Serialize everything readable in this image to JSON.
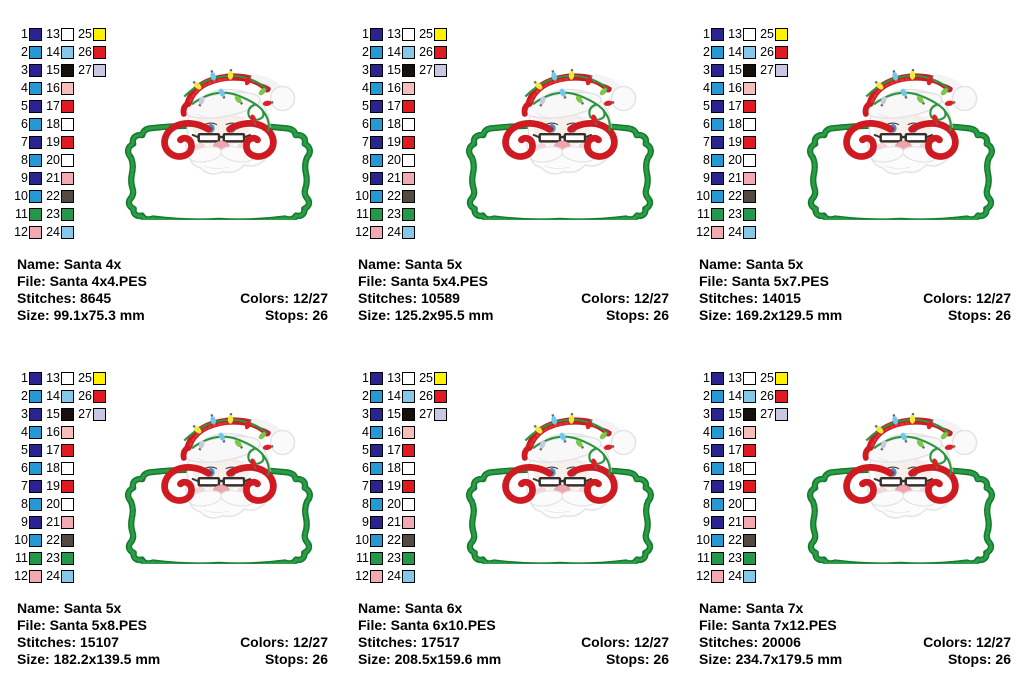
{
  "labels": {
    "name": "Name:",
    "file": "File:",
    "stitches": "Stitches:",
    "size": "Size:",
    "colors": "Colors:",
    "stops": "Stops:"
  },
  "palette": {
    "swatches": [
      {
        "n": "1",
        "hex": "#2B2490"
      },
      {
        "n": "2",
        "hex": "#2499D6"
      },
      {
        "n": "3",
        "hex": "#2B2490"
      },
      {
        "n": "4",
        "hex": "#2499D6"
      },
      {
        "n": "5",
        "hex": "#2B2490"
      },
      {
        "n": "6",
        "hex": "#2499D6"
      },
      {
        "n": "7",
        "hex": "#2B2490"
      },
      {
        "n": "8",
        "hex": "#2499D6"
      },
      {
        "n": "9",
        "hex": "#2B2490"
      },
      {
        "n": "10",
        "hex": "#2499D6"
      },
      {
        "n": "11",
        "hex": "#23984B"
      },
      {
        "n": "12",
        "hex": "#F2A9B1"
      },
      {
        "n": "13",
        "hex": "#FFFFFF"
      },
      {
        "n": "14",
        "hex": "#85C8EA"
      },
      {
        "n": "15",
        "hex": "#16100C"
      },
      {
        "n": "16",
        "hex": "#F6BEBA"
      },
      {
        "n": "17",
        "hex": "#E01A20"
      },
      {
        "n": "18",
        "hex": "#FFFFFF"
      },
      {
        "n": "19",
        "hex": "#E01A20"
      },
      {
        "n": "20",
        "hex": "#FFFFFF"
      },
      {
        "n": "21",
        "hex": "#F2A9B1"
      },
      {
        "n": "22",
        "hex": "#524A40"
      },
      {
        "n": "23",
        "hex": "#23984B"
      },
      {
        "n": "24",
        "hex": "#85C8EA"
      },
      {
        "n": "25",
        "hex": "#FFF200"
      },
      {
        "n": "26",
        "hex": "#E01A20"
      },
      {
        "n": "27",
        "hex": "#C9C8E2"
      }
    ]
  },
  "designs": [
    {
      "name": "Santa 4x",
      "file": "Santa 4x4.PES",
      "stitches": "8645",
      "size": "99.1x75.3 mm",
      "colors": "12/27",
      "stops": "26"
    },
    {
      "name": "Santa 5x",
      "file": "Santa 5x4.PES",
      "stitches": "10589",
      "size": "125.2x95.5 mm",
      "colors": "12/27",
      "stops": "26"
    },
    {
      "name": "Santa 5x",
      "file": "Santa 5x7.PES",
      "stitches": "14015",
      "size": "169.2x129.5 mm",
      "colors": "12/27",
      "stops": "26"
    },
    {
      "name": "Santa 5x",
      "file": "Santa 5x8.PES",
      "stitches": "15107",
      "size": "182.2x139.5 mm",
      "colors": "12/27",
      "stops": "26"
    },
    {
      "name": "Santa 6x",
      "file": "Santa 6x10.PES",
      "stitches": "17517",
      "size": "208.5x159.6 mm",
      "colors": "12/27",
      "stops": "26"
    },
    {
      "name": "Santa 7x",
      "file": "Santa 7x12.PES",
      "stitches": "20006",
      "size": "234.7x179.5 mm",
      "colors": "12/27",
      "stops": "26"
    }
  ],
  "artwork": {
    "colors": {
      "frame-green": "#137A2F",
      "frame-green-light": "#2FA148",
      "santa-red": "#CE1A20",
      "santa-red-light": "#E23238",
      "wire-green": "#2E9440",
      "white-fur": "#FAFAFA",
      "fur-shadow": "#E3E3E7",
      "eye-blue": "#4E88C0",
      "glasses-dark": "#35302B",
      "nose-pink": "#EFA4AE",
      "cheek-pink": "#F5CDD0",
      "bulb-yellow": "#F4E838",
      "bulb-red": "#DE2026",
      "bulb-blue": "#74C6EC",
      "bulb-green": "#7CC848",
      "bulb-lavender": "#C9C8E2"
    }
  }
}
